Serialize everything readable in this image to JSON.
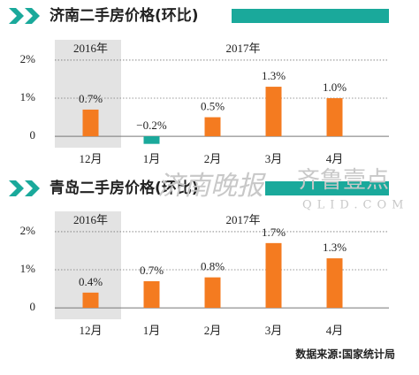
{
  "chart_data": [
    {
      "type": "bar",
      "title": "济南二手房价格(环比)",
      "categories": [
        "12月",
        "1月",
        "2月",
        "3月",
        "4月"
      ],
      "values": [
        0.7,
        -0.2,
        0.5,
        1.3,
        1.0
      ],
      "value_labels": [
        "0.7%",
        "−0.2%",
        "0.5%",
        "1.3%",
        "1.0%"
      ],
      "color": "#f47b20",
      "negative_color": "#1aa99b",
      "annotations": [
        "2016年",
        "2017年"
      ],
      "shaded_categories": [
        0
      ],
      "ylim": [
        -0.3,
        2.3
      ],
      "yticks": [
        0,
        {
          "value": 1,
          "label": "1%"
        },
        {
          "value": 2,
          "label": "2%"
        }
      ],
      "grid": true
    },
    {
      "type": "bar",
      "title": "青岛二手房价格(环比)",
      "categories": [
        "12月",
        "1月",
        "2月",
        "3月",
        "4月"
      ],
      "values": [
        0.4,
        0.7,
        0.8,
        1.7,
        1.3
      ],
      "value_labels": [
        "0.4%",
        "0.7%",
        "0.8%",
        "1.7%",
        "1.3%"
      ],
      "color": "#f47b20",
      "negative_color": "#1aa99b",
      "annotations": [
        "2016年",
        "2017年"
      ],
      "shaded_categories": [
        0
      ],
      "ylim": [
        -0.3,
        2.3
      ],
      "yticks": [
        0,
        {
          "value": 1,
          "label": "1%"
        },
        {
          "value": 2,
          "label": "2%"
        }
      ],
      "grid": true
    }
  ],
  "source": "数据来源:国家统计局",
  "watermark": [
    "济南晚报",
    "齐鲁壹点",
    "QLID.COM"
  ]
}
